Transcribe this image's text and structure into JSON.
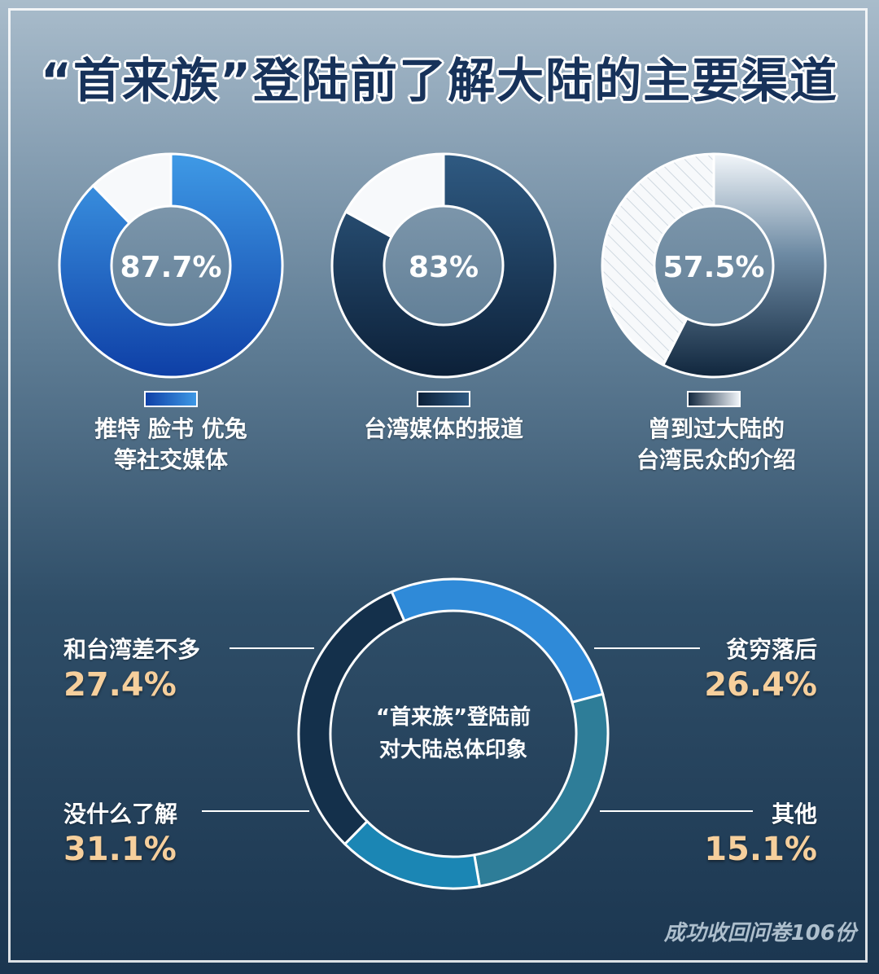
{
  "title": "“首来族”登陆前了解大陆的主要渠道",
  "chart_data": [
    {
      "type": "pie",
      "series": [
        {
          "name": "推特 脸书 优兔 等社交媒体",
          "value": 87.7,
          "label": "87.7%",
          "color": "#1f63c4"
        },
        {
          "name": "台湾媒体的报道",
          "value": 83,
          "label": "83%",
          "color": "#1c3a5c"
        },
        {
          "name": "曾到过大陆的 台湾民众的介绍",
          "value": 57.5,
          "label": "57.5%",
          "color": "#1f3a56"
        }
      ]
    },
    {
      "type": "pie",
      "title": "“首来族”登陆前对大陆总体印象",
      "slices": [
        {
          "name": "和台湾差不多",
          "value": 27.4,
          "label": "27.4%",
          "color": "#2f8ad8"
        },
        {
          "name": "贫穷落后",
          "value": 26.4,
          "label": "26.4%",
          "color": "#2e7d98"
        },
        {
          "name": "其他",
          "value": 15.1,
          "label": "15.1%",
          "color": "#1b86b4"
        },
        {
          "name": "没什么了解",
          "value": 31.1,
          "label": "31.1%",
          "color": "#14304b"
        }
      ]
    }
  ],
  "donut_labels": {
    "d1_line1": "推特 脸书 优兔",
    "d1_line2": "等社交媒体",
    "d2_line1": "台湾媒体的报道",
    "d3_line1": "曾到过大陆的",
    "d3_line2": "台湾民众的介绍"
  },
  "impression": {
    "center_line1": "“首来族”登陆前",
    "center_line2": "对大陆总体印象"
  },
  "footer": "成功收回问卷106份"
}
